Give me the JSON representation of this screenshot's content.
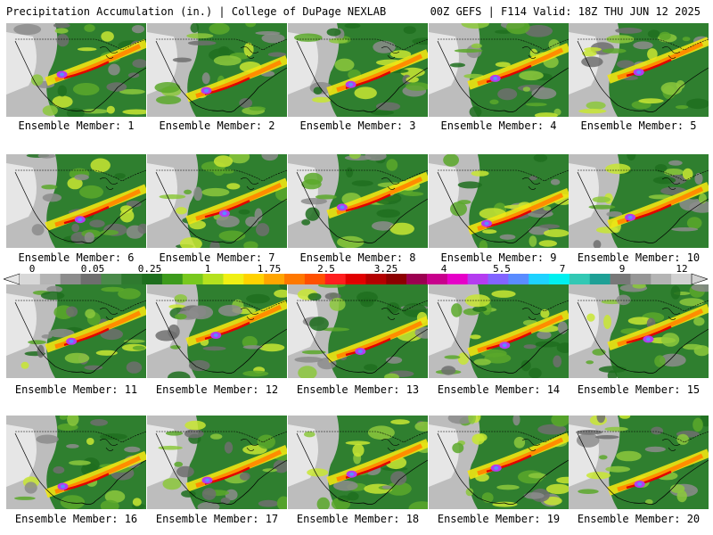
{
  "header": {
    "left_title": "Precipitation Accumulation (in.) | College of DuPage NEXLAB",
    "right_title": "00Z GEFS | F114 Valid: 18Z THU JUN 12 2025"
  },
  "caption_prefix": "Ensemble Member: ",
  "members": [
    "1",
    "2",
    "3",
    "4",
    "5",
    "6",
    "7",
    "8",
    "9",
    "10",
    "11",
    "12",
    "13",
    "14",
    "15",
    "16",
    "17",
    "18",
    "19",
    "20"
  ],
  "colorbar": {
    "labels": [
      "0",
      "0.05",
      "0.25",
      "1",
      "1.75",
      "2.5",
      "3.25",
      "4",
      "5.5",
      "7",
      "9",
      "12"
    ],
    "colors": [
      "#d8d8d8",
      "#b4b4b4",
      "#8c8c8c",
      "#6e6e6e",
      "#4a8a4a",
      "#2f7a2f",
      "#1e6e1e",
      "#3c9a1c",
      "#78c81e",
      "#b4e11e",
      "#f0f014",
      "#ffd200",
      "#ffa500",
      "#ff7800",
      "#ff5000",
      "#ff1e1e",
      "#e10000",
      "#b40000",
      "#8c0000",
      "#9b0050",
      "#c8008c",
      "#e600c8",
      "#b43cf0",
      "#8264ff",
      "#5a8cff",
      "#1ed2ff",
      "#00f0f0",
      "#32c8b4",
      "#1ea096",
      "#787878",
      "#969696",
      "#b4b4b4",
      "#d2d2d2"
    ]
  }
}
